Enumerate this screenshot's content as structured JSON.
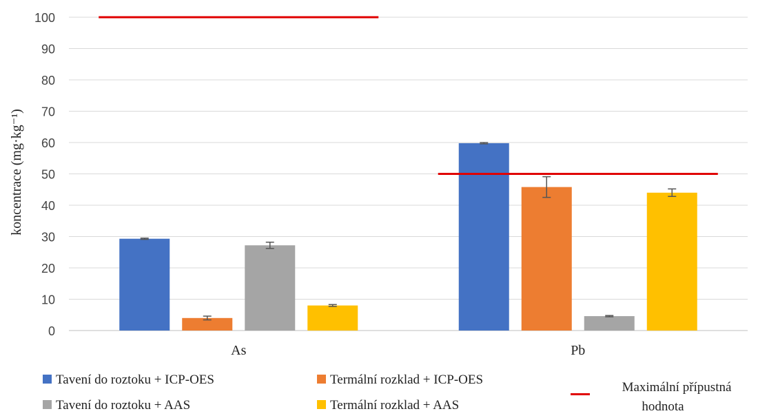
{
  "chart_data": {
    "type": "bar",
    "categories": [
      "As",
      "Pb"
    ],
    "ylabel": "koncentrace (mg·kg⁻¹)",
    "ylim": [
      0,
      100
    ],
    "yticks": [
      0,
      10,
      20,
      30,
      40,
      50,
      60,
      70,
      80,
      90,
      100
    ],
    "grid": true,
    "legend_position": "bottom",
    "series": [
      {
        "name": "Tavení do roztoku + ICP-OES",
        "color": "#4472c4",
        "values": [
          29.3,
          59.8
        ],
        "errors": [
          0.2,
          0.2
        ]
      },
      {
        "name": "Termální rozklad + ICP-OES",
        "color": "#ed7d31",
        "values": [
          4.0,
          45.8
        ],
        "errors": [
          0.6,
          3.3
        ]
      },
      {
        "name": "Tavení do roztoku + AAS",
        "color": "#a5a5a5",
        "values": [
          27.2,
          4.6
        ],
        "errors": [
          1.0,
          0.2
        ]
      },
      {
        "name": "Termální rozklad + AAS",
        "color": "#ffc000",
        "values": [
          8.0,
          44.0
        ],
        "errors": [
          0.3,
          1.2
        ]
      }
    ],
    "limit_lines": [
      {
        "name": "Maximální přípustná hodnota",
        "color": "#e00000",
        "category": "As",
        "value": 100
      },
      {
        "name": "Maximální přípustná hodnota",
        "color": "#e00000",
        "category": "Pb",
        "value": 50
      }
    ],
    "limit_legend": {
      "line1": "Maximální přípustná",
      "line2": "hodnota"
    }
  }
}
